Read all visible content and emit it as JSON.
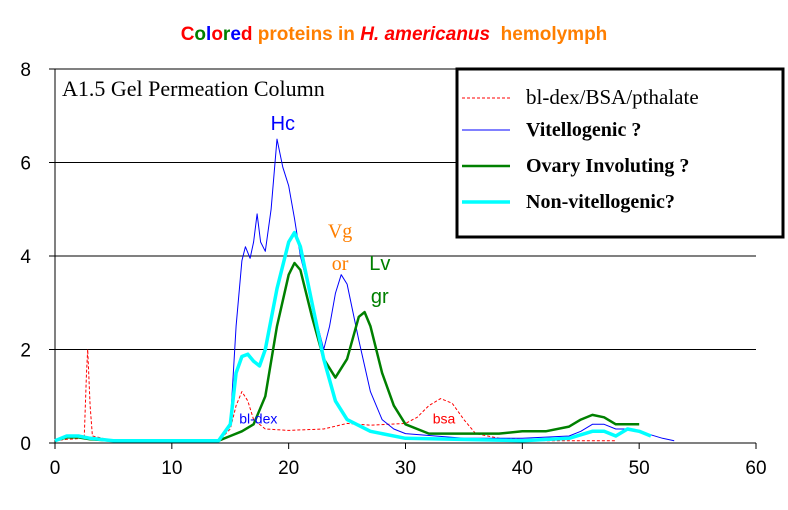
{
  "title": {
    "parts": [
      {
        "text": "C",
        "color": "#ff0000"
      },
      {
        "text": "o",
        "color": "#008000"
      },
      {
        "text": "l",
        "color": "#0000ff"
      },
      {
        "text": "o",
        "color": "#ff0000"
      },
      {
        "text": "r",
        "color": "#008000"
      },
      {
        "text": "e",
        "color": "#0000ff"
      },
      {
        "text": "d",
        "color": "#ff0000"
      },
      {
        "text": " proteins in ",
        "color": "#ff7f00"
      },
      {
        "text": "H. americanus",
        "color": "#ff0000",
        "italic": true
      },
      {
        "text": "  hemolymph",
        "color": "#ff7f00"
      }
    ],
    "full": "Colored proteins in H. americanus hemolymph"
  },
  "chart_data": {
    "type": "line",
    "title": "Colored proteins in H. americanus hemolymph",
    "subtitle": "A1.5 Gel Permeation Column",
    "xlabel": "",
    "ylabel": "",
    "xlim": [
      0,
      60
    ],
    "ylim": [
      0,
      8
    ],
    "xticks": [
      0,
      10,
      20,
      30,
      40,
      50,
      60
    ],
    "yticks": [
      0,
      2,
      4,
      6,
      8
    ],
    "grid": "horizontal",
    "legend_position": "top-right",
    "series": [
      {
        "name": "bl-dex/BSA/pthalate",
        "color": "#ff0000",
        "style": "dashed",
        "width": 1,
        "x": [
          0,
          1,
          2.5,
          2.7,
          2.8,
          3,
          3.2,
          5,
          10,
          14,
          15,
          15.5,
          16,
          16.5,
          17,
          18,
          20,
          23,
          25,
          27,
          30,
          31,
          32,
          33,
          34,
          35,
          36,
          38,
          42,
          45,
          48
        ],
        "y": [
          0.05,
          0.08,
          0.1,
          1.5,
          2.0,
          0.8,
          0.15,
          0.05,
          0.05,
          0.05,
          0.3,
          0.8,
          1.1,
          0.9,
          0.5,
          0.3,
          0.27,
          0.3,
          0.42,
          0.38,
          0.42,
          0.55,
          0.8,
          0.95,
          0.85,
          0.5,
          0.2,
          0.1,
          0.05,
          0.05,
          0.05
        ]
      },
      {
        "name": "Vitellogenic ?",
        "color": "#0000ff",
        "style": "solid",
        "width": 1,
        "x": [
          0,
          1,
          2,
          3,
          5,
          10,
          13,
          14,
          15,
          15.5,
          16,
          16.3,
          16.7,
          17,
          17.3,
          17.6,
          18,
          18.5,
          19,
          19.5,
          20,
          20.5,
          21,
          22,
          23,
          23.5,
          24,
          24.5,
          25,
          26,
          27,
          28,
          29,
          30,
          35,
          40,
          44,
          45,
          46,
          47,
          48,
          49,
          50,
          52,
          53
        ],
        "y": [
          0.05,
          0.15,
          0.12,
          0.1,
          0.05,
          0.05,
          0.03,
          0.05,
          0.4,
          2.5,
          3.9,
          4.2,
          3.95,
          4.3,
          4.9,
          4.3,
          4.1,
          5.0,
          6.5,
          5.9,
          5.5,
          4.8,
          4.0,
          3.0,
          2.0,
          2.5,
          3.2,
          3.6,
          3.4,
          2.2,
          1.1,
          0.5,
          0.3,
          0.2,
          0.1,
          0.1,
          0.15,
          0.25,
          0.4,
          0.4,
          0.3,
          0.3,
          0.25,
          0.1,
          0.05
        ]
      },
      {
        "name": "Ovary Involuting ?",
        "color": "#008000",
        "style": "solid",
        "width": 2.5,
        "x": [
          0,
          1,
          2,
          3,
          5,
          10,
          14,
          15,
          16,
          17,
          18,
          19,
          20,
          20.5,
          21,
          22,
          23,
          24,
          25,
          26,
          26.5,
          27,
          28,
          29,
          30,
          32,
          38,
          40,
          42,
          44,
          45,
          46,
          47,
          48,
          50
        ],
        "y": [
          0.05,
          0.12,
          0.12,
          0.08,
          0.05,
          0.05,
          0.05,
          0.15,
          0.25,
          0.4,
          1.0,
          2.5,
          3.6,
          3.85,
          3.7,
          2.7,
          1.8,
          1.4,
          1.8,
          2.7,
          2.8,
          2.5,
          1.5,
          0.8,
          0.4,
          0.2,
          0.2,
          0.25,
          0.25,
          0.35,
          0.5,
          0.6,
          0.55,
          0.4,
          0.4
        ]
      },
      {
        "name": "Non-vitellogenic?",
        "color": "#00ffff",
        "style": "solid",
        "width": 3.5,
        "x": [
          0,
          1,
          2,
          3,
          5,
          10,
          14,
          15,
          15.5,
          16,
          16.5,
          17,
          17.5,
          18,
          19,
          20,
          20.5,
          21,
          22,
          23,
          24,
          25,
          27,
          30,
          40,
          44,
          46,
          47,
          48,
          49,
          50,
          51
        ],
        "y": [
          0.05,
          0.15,
          0.15,
          0.1,
          0.05,
          0.05,
          0.05,
          0.4,
          1.5,
          1.85,
          1.9,
          1.75,
          1.65,
          2.0,
          3.3,
          4.3,
          4.5,
          4.2,
          3.0,
          1.8,
          0.9,
          0.5,
          0.25,
          0.1,
          0.05,
          0.1,
          0.25,
          0.25,
          0.15,
          0.3,
          0.25,
          0.15
        ]
      }
    ],
    "annotations": [
      {
        "text": "Hc",
        "x": 19.5,
        "y": 6.7,
        "color": "#0000ff",
        "size": 20
      },
      {
        "text": "Vg",
        "x": 24.4,
        "y": 4.4,
        "color": "#ff7f00",
        "size": 20,
        "serif": true
      },
      {
        "text": "or",
        "x": 24.4,
        "y": 3.7,
        "color": "#ff7f00",
        "size": 20,
        "serif": true
      },
      {
        "text": "Lv",
        "x": 27.8,
        "y": 3.7,
        "color": "#008000",
        "size": 20
      },
      {
        "text": "gr",
        "x": 27.8,
        "y": 3.0,
        "color": "#008000",
        "size": 20
      },
      {
        "text": "bl-dex",
        "x": 17.4,
        "y": 0.42,
        "color": "#0000ff",
        "size": 14
      },
      {
        "text": "bsa",
        "x": 33.3,
        "y": 0.42,
        "color": "#ff0000",
        "size": 14
      }
    ]
  }
}
